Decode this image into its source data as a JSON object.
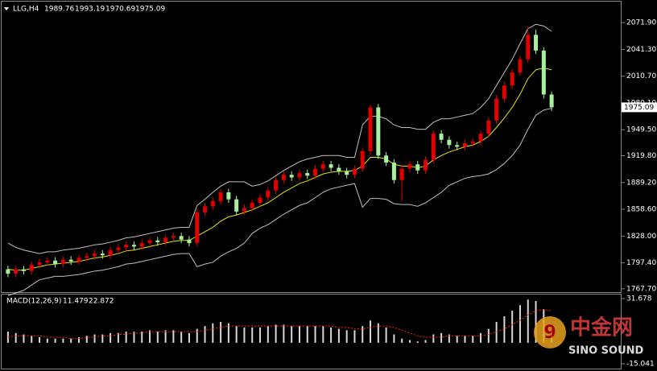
{
  "chart_data": {
    "type": "candlestick",
    "symbol": "LLG,H4",
    "up_color": "#e00000",
    "down_color": "#a8f0a0",
    "open": [
      1790,
      1785,
      1790,
      1788,
      1795,
      1798,
      1800,
      1796,
      1801,
      1799,
      1803,
      1805,
      1808,
      1806,
      1812,
      1815,
      1818,
      1816,
      1820,
      1823,
      1821,
      1826,
      1828,
      1824,
      1820,
      1855,
      1862,
      1868,
      1878,
      1870,
      1856,
      1860,
      1866,
      1872,
      1880,
      1892,
      1898,
      1895,
      1900,
      1897,
      1905,
      1910,
      1906,
      1902,
      1898,
      1905,
      1925,
      1975,
      1920,
      1912,
      1892,
      1905,
      1910,
      1903,
      1915,
      1945,
      1938,
      1932,
      1930,
      1934,
      1936,
      1945,
      1960,
      1985,
      2000,
      2015,
      2030,
      2058,
      2040,
      1989.76
    ],
    "high": [
      1794,
      1794,
      1794,
      1799,
      1802,
      1804,
      1804,
      1805,
      1805,
      1807,
      1809,
      1812,
      1812,
      1816,
      1819,
      1822,
      1822,
      1824,
      1827,
      1827,
      1830,
      1832,
      1832,
      1828,
      1859,
      1866,
      1872,
      1882,
      1882,
      1874,
      1864,
      1870,
      1876,
      1884,
      1896,
      1902,
      1902,
      1904,
      1904,
      1909,
      1914,
      1914,
      1910,
      1906,
      1909,
      1929,
      1978,
      1979,
      1924,
      1916,
      1909,
      1914,
      1914,
      1919,
      1949,
      1949,
      1942,
      1936,
      1938,
      1940,
      1949,
      1964,
      1989,
      2004,
      2019,
      2034,
      2068,
      2064,
      2044,
      1993.19
    ],
    "low": [
      1781,
      1781,
      1784,
      1784,
      1791,
      1794,
      1792,
      1792,
      1795,
      1795,
      1799,
      1801,
      1802,
      1802,
      1808,
      1811,
      1812,
      1812,
      1816,
      1817,
      1817,
      1822,
      1820,
      1816,
      1816,
      1851,
      1858,
      1864,
      1866,
      1852,
      1852,
      1856,
      1862,
      1868,
      1876,
      1888,
      1891,
      1891,
      1893,
      1893,
      1901,
      1902,
      1898,
      1894,
      1894,
      1901,
      1921,
      1916,
      1908,
      1888,
      1868,
      1901,
      1899,
      1899,
      1911,
      1934,
      1928,
      1926,
      1926,
      1930,
      1932,
      1941,
      1956,
      1981,
      1996,
      2011,
      2026,
      2036,
      1985,
      1970.69
    ],
    "close": [
      1785,
      1790,
      1788,
      1795,
      1798,
      1800,
      1796,
      1801,
      1799,
      1803,
      1805,
      1808,
      1806,
      1812,
      1815,
      1818,
      1816,
      1820,
      1823,
      1821,
      1826,
      1828,
      1824,
      1820,
      1855,
      1862,
      1868,
      1878,
      1870,
      1856,
      1860,
      1866,
      1872,
      1880,
      1892,
      1898,
      1895,
      1900,
      1897,
      1905,
      1910,
      1906,
      1902,
      1898,
      1905,
      1925,
      1975,
      1920,
      1912,
      1892,
      1905,
      1910,
      1903,
      1915,
      1945,
      1938,
      1932,
      1930,
      1934,
      1936,
      1945,
      1960,
      1985,
      2000,
      2015,
      2030,
      2058,
      2040,
      1989.76,
      1975.09
    ],
    "ylim": [
      1763,
      2095
    ],
    "yticks": [
      {
        "value": 2071.9,
        "label": "2071.90"
      },
      {
        "value": 2041.3,
        "label": "2041.30"
      },
      {
        "value": 2010.7,
        "label": "2010.70"
      },
      {
        "value": 1980.1,
        "label": "1980.10"
      },
      {
        "value": 1949.5,
        "label": "1949.50"
      },
      {
        "value": 1919.8,
        "label": "1919.80"
      },
      {
        "value": 1889.2,
        "label": "1889.20"
      },
      {
        "value": 1858.6,
        "label": "1858.60"
      },
      {
        "value": 1828,
        "label": "1828.00"
      },
      {
        "value": 1797.4,
        "label": "1797.40"
      },
      {
        "value": 1767.7,
        "label": "1767.70"
      }
    ],
    "bands": {
      "upper_color": "#c0c0c0",
      "middle_color": "#e6e600",
      "upper": [
        1820,
        1815,
        1812,
        1810,
        1808,
        1810,
        1810,
        1812,
        1813,
        1814,
        1816,
        1818,
        1819,
        1821,
        1823,
        1826,
        1827,
        1829,
        1831,
        1833,
        1835,
        1837,
        1838,
        1838,
        1863,
        1870,
        1878,
        1885,
        1890,
        1890,
        1890,
        1885,
        1887,
        1891,
        1897,
        1903,
        1908,
        1913,
        1916,
        1918,
        1920,
        1920,
        1920,
        1918,
        1918,
        1955,
        1965,
        1965,
        1962,
        1955,
        1952,
        1952,
        1950,
        1950,
        1958,
        1962,
        1962,
        1964,
        1966,
        1968,
        1975,
        1985,
        2000,
        2015,
        2030,
        2048,
        2065,
        2070,
        2068,
        2062
      ],
      "middle": [
        1790,
        1789,
        1789,
        1791,
        1793,
        1795,
        1796,
        1797,
        1798,
        1799,
        1801,
        1803,
        1804,
        1806,
        1808,
        1811,
        1812,
        1814,
        1816,
        1818,
        1820,
        1822,
        1823,
        1823,
        1828,
        1833,
        1838,
        1845,
        1850,
        1852,
        1855,
        1858,
        1862,
        1866,
        1872,
        1878,
        1883,
        1888,
        1891,
        1895,
        1899,
        1901,
        1902,
        1902,
        1903,
        1908,
        1918,
        1918,
        1916,
        1910,
        1908,
        1908,
        1906,
        1908,
        1915,
        1920,
        1924,
        1927,
        1930,
        1932,
        1936,
        1942,
        1952,
        1963,
        1975,
        1990,
        2008,
        2018,
        2020,
        2018
      ],
      "lower": [
        1760,
        1763,
        1766,
        1772,
        1778,
        1780,
        1782,
        1782,
        1783,
        1784,
        1786,
        1788,
        1789,
        1791,
        1793,
        1796,
        1797,
        1799,
        1801,
        1803,
        1805,
        1807,
        1808,
        1808,
        1793,
        1796,
        1798,
        1805,
        1810,
        1814,
        1820,
        1831,
        1837,
        1841,
        1847,
        1853,
        1858,
        1863,
        1866,
        1872,
        1878,
        1882,
        1884,
        1886,
        1888,
        1861,
        1871,
        1871,
        1870,
        1865,
        1864,
        1864,
        1862,
        1866,
        1872,
        1878,
        1886,
        1890,
        1894,
        1896,
        1897,
        1899,
        1904,
        1911,
        1920,
        1932,
        1950,
        1966,
        1972,
        1974
      ]
    },
    "macd": {
      "title": "MACD(12,26,9)",
      "histogram_color": "#d8d8d8",
      "signal_color": "#ff2020",
      "histogram": [
        8,
        7,
        6,
        5,
        4,
        3,
        3,
        3,
        3,
        4,
        5,
        6,
        6,
        7,
        7,
        8,
        8,
        8,
        9,
        8,
        9,
        9,
        8,
        7,
        10,
        12,
        14,
        15,
        14,
        12,
        11,
        11,
        11,
        12,
        13,
        13,
        12,
        12,
        12,
        12,
        12,
        11,
        10,
        9,
        9,
        12,
        16,
        14,
        11,
        6,
        3,
        2,
        1,
        2,
        6,
        7,
        6,
        5,
        5,
        5,
        7,
        10,
        15,
        19,
        23,
        27,
        31,
        30,
        24,
        11.479
      ],
      "signal": [
        4,
        5,
        5,
        5,
        5,
        4,
        4,
        4,
        3,
        3,
        4,
        4,
        5,
        5,
        6,
        6,
        7,
        7,
        8,
        8,
        8,
        8,
        8,
        8,
        8,
        9,
        10,
        11,
        12,
        12,
        12,
        12,
        12,
        12,
        12,
        12,
        12,
        12,
        12,
        12,
        12,
        12,
        11,
        11,
        10,
        10,
        11,
        12,
        12,
        11,
        9,
        7,
        5,
        4,
        4,
        4,
        5,
        5,
        5,
        5,
        5,
        6,
        8,
        10,
        13,
        16,
        20,
        23,
        24,
        22.872
      ],
      "ylim": [
        -18.5,
        34.6
      ],
      "yticks": [
        31.678,
        -15.041
      ]
    }
  },
  "watermark": {
    "title": "中金网",
    "subtitle": "SINO SOUND"
  }
}
